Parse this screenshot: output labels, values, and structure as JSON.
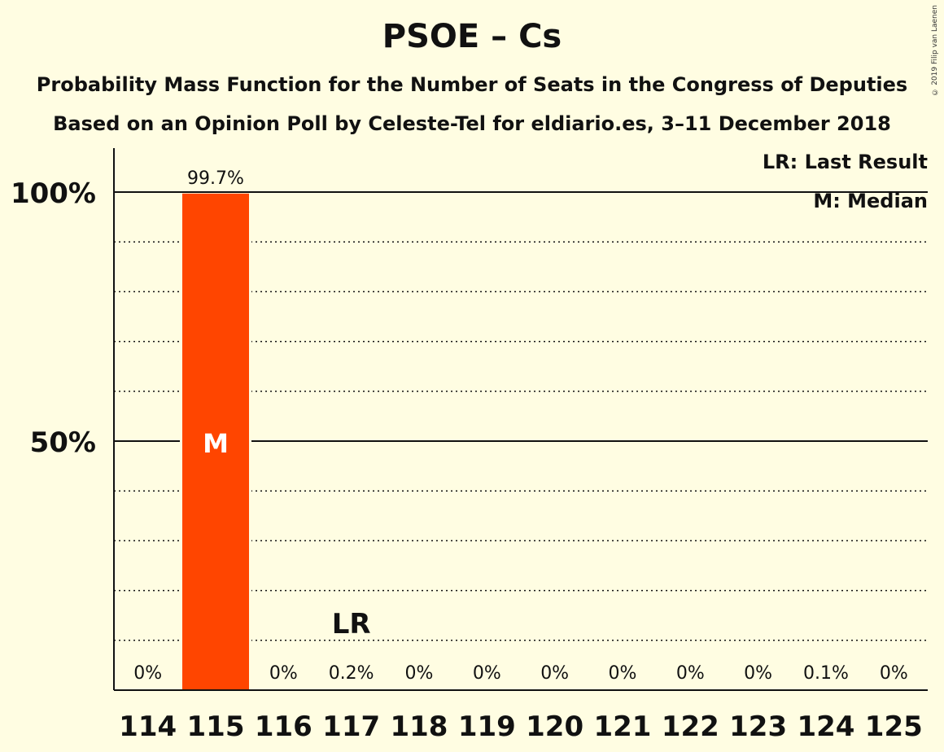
{
  "chart_data": {
    "type": "bar",
    "title": "PSOE – Cs",
    "subtitle_line1": "Probability Mass Function for the Number of Seats in the Congress of Deputies",
    "subtitle_line2": "Based on an Opinion Poll by Celeste-Tel for eldiario.es, 3–11 December 2018",
    "categories": [
      "114",
      "115",
      "116",
      "117",
      "118",
      "119",
      "120",
      "121",
      "122",
      "123",
      "124",
      "125"
    ],
    "values": [
      0,
      99.7,
      0,
      0.2,
      0,
      0,
      0,
      0,
      0,
      0,
      0.1,
      0
    ],
    "value_labels": [
      "0%",
      "99.7%",
      "0%",
      "0.2%",
      "0%",
      "0%",
      "0%",
      "0%",
      "0%",
      "0%",
      "0.1%",
      "0%"
    ],
    "ylim": [
      0,
      100
    ],
    "y_ticks": [
      {
        "value": 50,
        "label": "50%"
      },
      {
        "value": 100,
        "label": "100%"
      }
    ],
    "minor_grid_step": 10,
    "bar_color": "#ff4500",
    "median_category": "115",
    "median_marker": "M",
    "last_result_category": "117",
    "last_result_marker": "LR",
    "legend": {
      "lr": "LR: Last Result",
      "m": "M: Median",
      "placement": "top-right"
    },
    "copyright": "© 2019 Filip van Laenen"
  }
}
